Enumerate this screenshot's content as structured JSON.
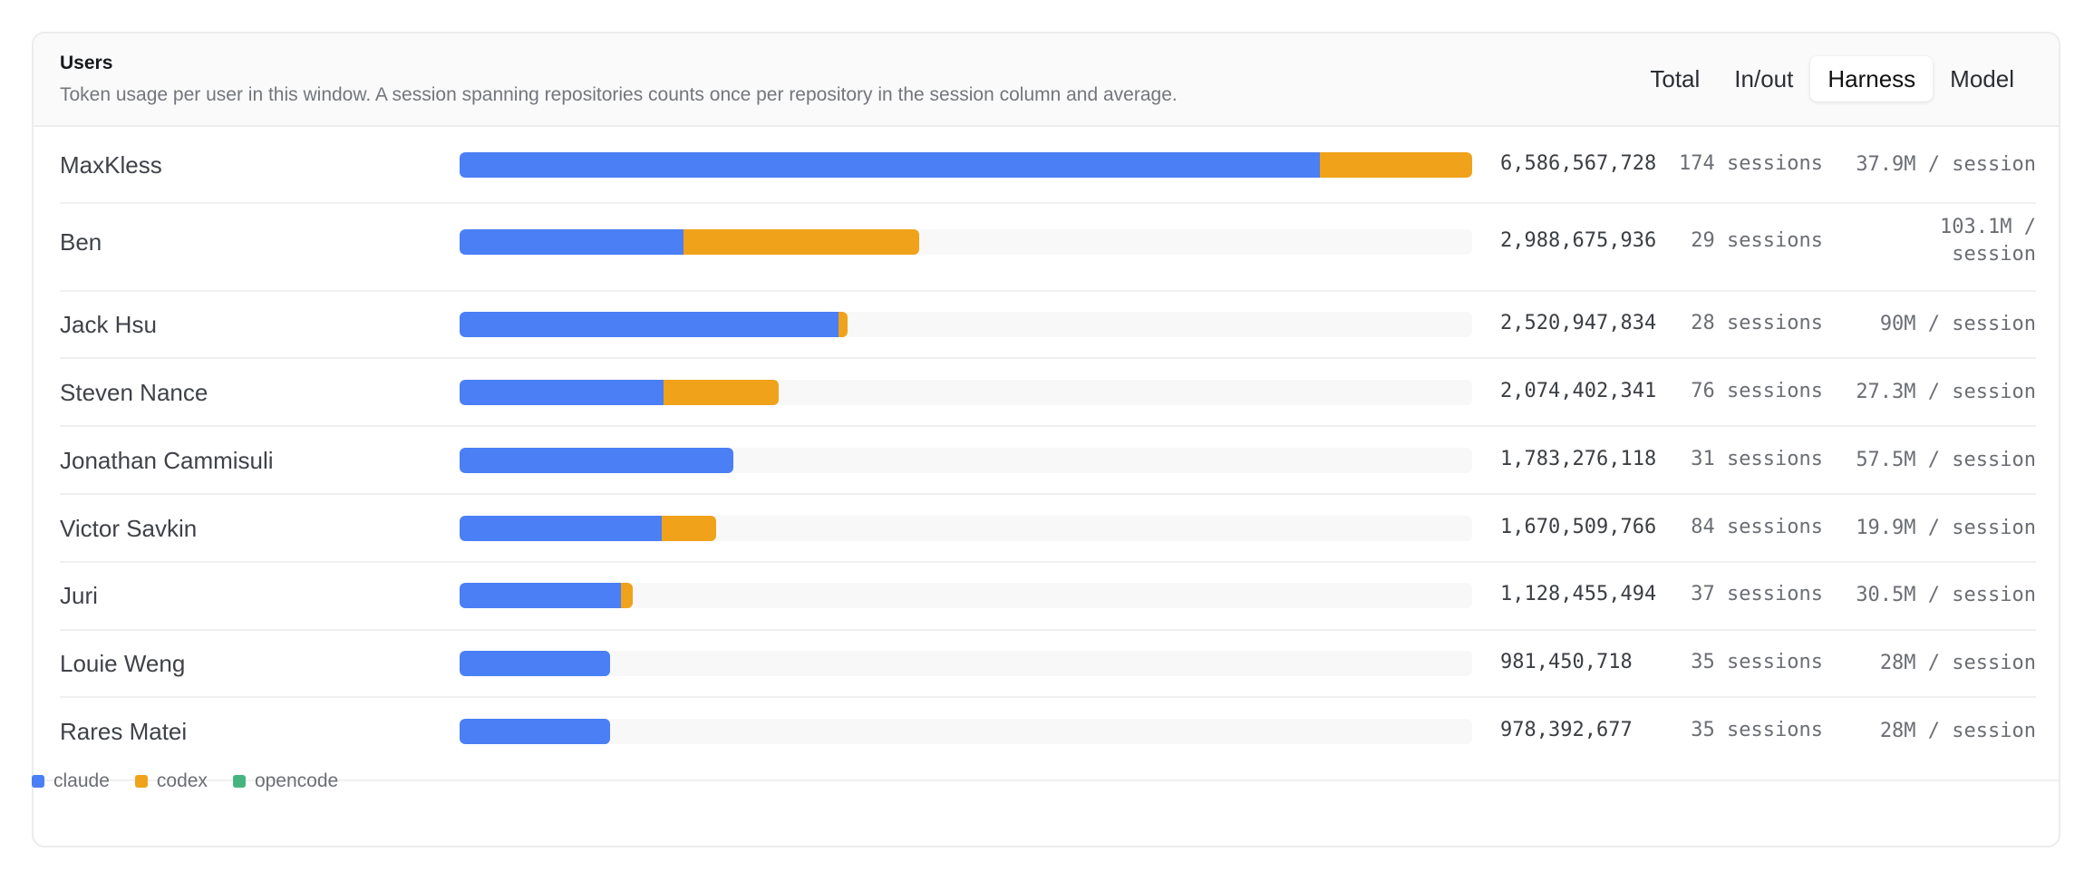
{
  "header": {
    "title": "Users",
    "subtitle": "Token usage per user in this window. A session spanning repositories counts once per repository in the session column and average."
  },
  "tabs": [
    {
      "label": "Total",
      "active": false
    },
    {
      "label": "In/out",
      "active": false
    },
    {
      "label": "Harness",
      "active": true
    },
    {
      "label": "Model",
      "active": false
    }
  ],
  "colors": {
    "claude": "#4a7ff5",
    "codex": "#f0a21a",
    "opencode": "#45b57f"
  },
  "legend": [
    {
      "name": "claude",
      "color": "#4a7ff5"
    },
    {
      "name": "codex",
      "color": "#f0a21a"
    },
    {
      "name": "opencode",
      "color": "#45b57f"
    }
  ],
  "chart_data": {
    "type": "bar",
    "orientation": "horizontal",
    "stacked": true,
    "categories": [
      "MaxKless",
      "Ben",
      "Jack Hsu",
      "Steven Nance",
      "Jonathan Cammisuli",
      "Victor Savkin",
      "Juri",
      "Louie Weng",
      "Rares Matei"
    ],
    "series": [
      {
        "name": "claude",
        "values": [
          5596000000,
          1458000000,
          2464000000,
          1327000000,
          1783276118,
          1313000000,
          1051000000,
          981450718,
          978392677
        ]
      },
      {
        "name": "codex",
        "values": [
          990567728,
          1530675936,
          56947834,
          747402341,
          0,
          357509766,
          77455494,
          0,
          0
        ]
      },
      {
        "name": "opencode",
        "values": [
          0,
          0,
          0,
          0,
          0,
          0,
          0,
          0,
          0
        ]
      }
    ],
    "xlim": [
      0,
      6586567728
    ],
    "legend_position": "bottom-left"
  },
  "rows": [
    {
      "name": "MaxKless",
      "total": "6,586,567,728",
      "sessions": "174 sessions",
      "avg": "37.9M / session"
    },
    {
      "name": "Ben",
      "total": "2,988,675,936",
      "sessions": "29 sessions",
      "avg_line1": "103.1M /",
      "avg_line2": "session"
    },
    {
      "name": "Jack Hsu",
      "total": "2,520,947,834",
      "sessions": "28 sessions",
      "avg": "90M / session"
    },
    {
      "name": "Steven Nance",
      "total": "2,074,402,341",
      "sessions": "76 sessions",
      "avg": "27.3M / session"
    },
    {
      "name": "Jonathan Cammisuli",
      "total": "1,783,276,118",
      "sessions": "31 sessions",
      "avg": "57.5M / session"
    },
    {
      "name": "Victor Savkin",
      "total": "1,670,509,766",
      "sessions": "84 sessions",
      "avg": "19.9M / session"
    },
    {
      "name": "Juri",
      "total": "1,128,455,494",
      "sessions": "37 sessions",
      "avg": "30.5M / session"
    },
    {
      "name": "Louie Weng",
      "total": "981,450,718",
      "sessions": "35 sessions",
      "avg": "28M / session"
    },
    {
      "name": "Rares Matei",
      "total": "978,392,677",
      "sessions": "35 sessions",
      "avg": "28M / session"
    }
  ]
}
